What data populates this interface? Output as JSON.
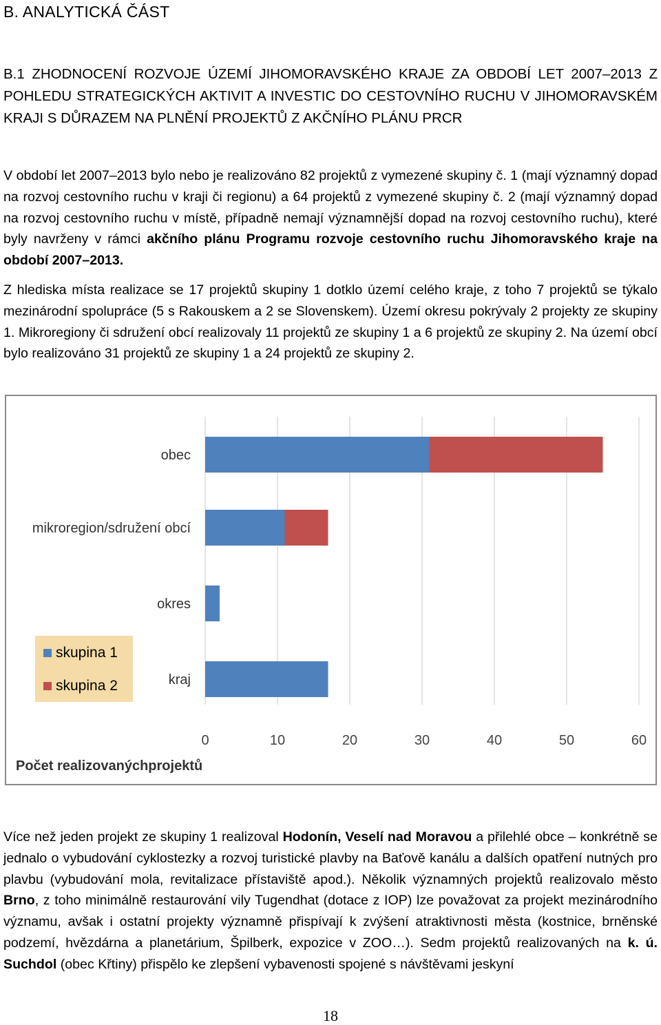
{
  "heading": "B. ANALYTICKÁ ČÁST",
  "subheading": "B.1 ZHODNOCENÍ ROZVOJE ÚZEMÍ JIHOMORAVSKÉHO KRAJE ZA OBDOBÍ LET 2007–2013 Z POHLEDU STRATEGICKÝCH AKTIVIT A INVESTIC DO CESTOVNÍHO RUCHU V JIHOMORAVSKÉM KRAJI S DŮRAZEM NA PLNĚNÍ PROJEKTŮ Z AKČNÍHO PLÁNU PRCR",
  "paragraph1": {
    "text": "V období let 2007–2013 bylo nebo je realizováno 82 projektů z vymezené skupiny č. 1 (mají významný dopad na rozvoj cestovního ruchu v kraji či regionu) a 64 projektů z vymezené skupiny č. 2 (mají významný dopad na rozvoj cestovního ruchu v místě, případně nemají významnější dopad na rozvoj cestovního ruchu), které byly navrženy v rámci ",
    "bold": "akčního plánu Programu rozvoje cestovního ruchu Jihomoravského kraje na období 2007–2013."
  },
  "paragraph2": "Z hlediska místa realizace se 17 projektů skupiny 1 dotklo území celého kraje, z toho 7 projektů se týkalo mezinárodní spolupráce (5 s Rakouskem a 2 se Slovenskem). Území okresu pokrývaly 2 projekty ze skupiny 1. Mikroregiony či sdružení obcí realizovaly 11 projektů ze skupiny 1 a 6 projektů ze skupiny 2. Na území obcí bylo realizováno 31 projektů ze skupiny 1 a 24 projektů ze skupiny 2.",
  "paragraph3": {
    "t1": "Více než jeden projekt ze skupiny 1 realizoval ",
    "b1": "Hodonín, Veselí nad Moravou",
    "t2": " a přilehlé obce – konkrétně se jednalo o vybudování cyklostezky a rozvoj turistické plavby na Baťově kanálu a dalších opatření nutných pro plavbu (vybudování mola, revitalizace přístaviště apod.). Několik významných projektů realizovalo město ",
    "b2": "Brno",
    "t3": ", z toho minimálně restaurování vily Tugendhat (dotace z IOP) lze považovat za projekt mezinárodního významu, avšak i ostatní projekty významně přispívají k zvýšení atraktivnosti města (kostnice, brněnské podzemí, hvězdárna a planetárium, Špilberk, expozice v ZOO…). Sedm projektů realizovaných na ",
    "b3": "k. ú. Suchdol",
    "t4": " (obec Křtiny) přispělo ke zlepšení vybavenosti spojené s návštěvami jeskyní"
  },
  "page_number": "18",
  "chart_data": {
    "type": "bar",
    "orientation": "horizontal",
    "stacked": true,
    "categories": [
      "obec",
      "mikroregion/sdružení obcí",
      "okres",
      "kraj"
    ],
    "series": [
      {
        "name": "skupina 1",
        "values": [
          31,
          11,
          2,
          17
        ],
        "color": "#4f81bd"
      },
      {
        "name": "skupina 2",
        "values": [
          24,
          6,
          0,
          0
        ],
        "color": "#c0504d"
      }
    ],
    "xlabel": "Počet realizovanýchprojektů",
    "xlim": [
      0,
      60
    ],
    "xticks": [
      "0",
      "10",
      "20",
      "30",
      "40",
      "50",
      "60"
    ],
    "grid": true,
    "legend": "left"
  }
}
